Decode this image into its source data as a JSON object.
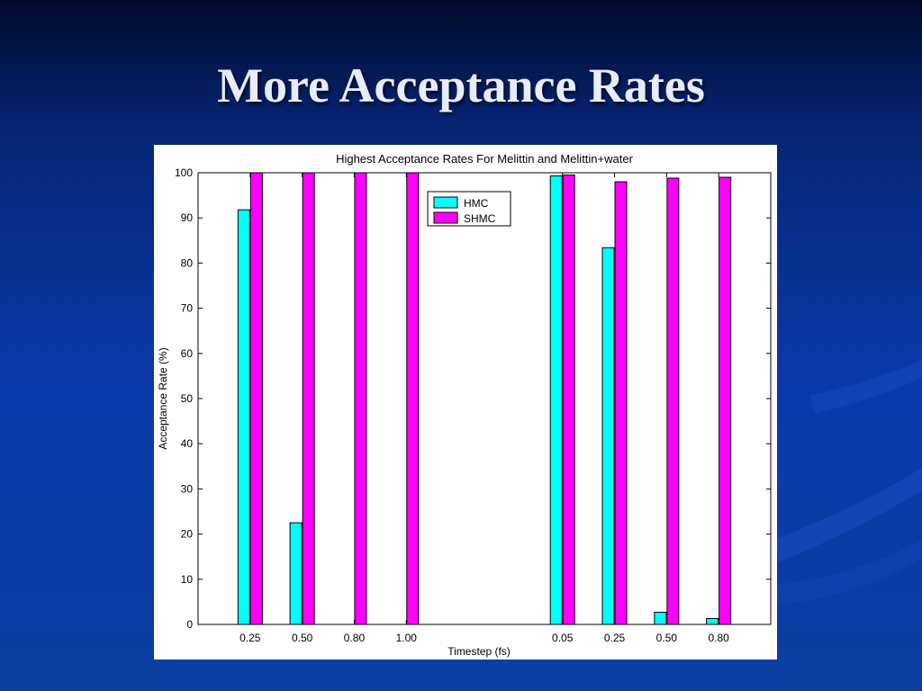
{
  "slide": {
    "title": "More Acceptance Rates"
  },
  "colors": {
    "hmc": "#00ffff",
    "shmc": "#ff00ff",
    "background_top": "#020a2a",
    "background_main": "#0a3aa8",
    "title": "#e8ecff"
  },
  "chart_data": {
    "type": "bar",
    "title": "Highest Acceptance Rates For Melittin and Melittin+water",
    "xlabel": "Timestep (fs)",
    "ylabel": "Acceptance Rate (%)",
    "ylim": [
      0,
      100
    ],
    "yticks": [
      0,
      10,
      20,
      30,
      40,
      50,
      60,
      70,
      80,
      90,
      100
    ],
    "categories": [
      "0.25",
      "0.50",
      "0.80",
      "1.00",
      "",
      "",
      "0.05",
      "0.25",
      "0.50",
      "0.80"
    ],
    "series": [
      {
        "name": "HMC",
        "color": "#00ffff",
        "values": [
          91.8,
          22.5,
          0,
          0,
          null,
          null,
          99.3,
          83.4,
          2.7,
          1.3
        ]
      },
      {
        "name": "SHMC",
        "color": "#ff00ff",
        "values": [
          100,
          100,
          100,
          100,
          null,
          null,
          99.5,
          98,
          98.8,
          99
        ]
      }
    ],
    "legend": "top-center",
    "grid": false
  }
}
